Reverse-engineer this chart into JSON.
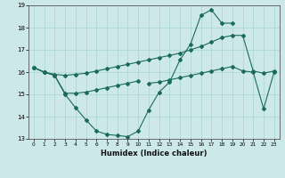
{
  "xlabel": "Humidex (Indice chaleur)",
  "xlim": [
    -0.5,
    23.5
  ],
  "ylim": [
    13,
    19
  ],
  "yticks": [
    13,
    14,
    15,
    16,
    17,
    18,
    19
  ],
  "xticks": [
    0,
    1,
    2,
    3,
    4,
    5,
    6,
    7,
    8,
    9,
    10,
    11,
    12,
    13,
    14,
    15,
    16,
    17,
    18,
    19,
    20,
    21,
    22,
    23
  ],
  "bg_color": "#cce8e8",
  "grid_color": "#add8d8",
  "line_color": "#1a6b5a",
  "line1_x": [
    0,
    1,
    2,
    3,
    4,
    5,
    6,
    7,
    8,
    9,
    10,
    11,
    12,
    13,
    14,
    15,
    16,
    17,
    18,
    19,
    20,
    21,
    22,
    23
  ],
  "line1_y": [
    16.2,
    16.0,
    15.9,
    15.85,
    15.9,
    15.95,
    16.05,
    16.15,
    16.25,
    16.35,
    16.45,
    16.55,
    16.65,
    16.75,
    16.85,
    17.0,
    17.15,
    17.35,
    17.55,
    17.65,
    17.65,
    16.05,
    15.95,
    16.05
  ],
  "line2_x": [
    0,
    1,
    2,
    3,
    4,
    5,
    6,
    7,
    8,
    9,
    10,
    11,
    12,
    13,
    14,
    15,
    16,
    17,
    18,
    19
  ],
  "line2_y": [
    16.2,
    16.0,
    15.85,
    15.0,
    14.4,
    13.85,
    13.35,
    13.2,
    13.15,
    13.1,
    13.35,
    14.3,
    15.1,
    15.55,
    16.55,
    17.25,
    18.55,
    18.8,
    18.2,
    18.2
  ],
  "line3_x": [
    0,
    1,
    2,
    3,
    4,
    5,
    6,
    7,
    8,
    9,
    10
  ],
  "line3_y": [
    16.2,
    16.0,
    15.85,
    15.05,
    15.05,
    15.1,
    15.2,
    15.3,
    15.4,
    15.5,
    15.6
  ],
  "line4_x": [
    11,
    12,
    13,
    14,
    15,
    16,
    17,
    18,
    19,
    20,
    21,
    22,
    23
  ],
  "line4_y": [
    15.5,
    15.55,
    15.65,
    15.75,
    15.85,
    15.95,
    16.05,
    16.15,
    16.25,
    16.05,
    16.0,
    14.35,
    16.0
  ]
}
